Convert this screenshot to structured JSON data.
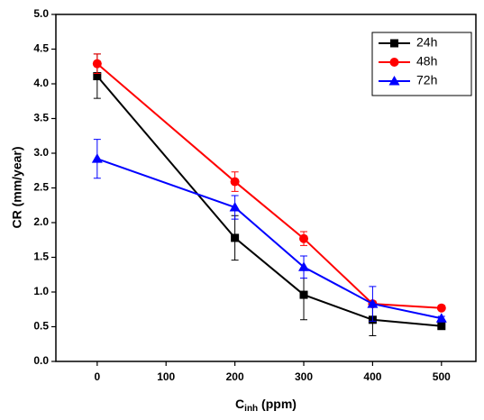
{
  "chart_data": {
    "type": "line",
    "xlabel": [
      "C",
      "inh",
      " (ppm)"
    ],
    "ylabel": "CR (mm/year)",
    "x": [
      0,
      200,
      300,
      400,
      500
    ],
    "series": [
      {
        "name": "24h",
        "color": "#000000",
        "marker": "square",
        "values": [
          4.11,
          1.78,
          0.96,
          0.6,
          0.51
        ],
        "errors": [
          0.32,
          0.32,
          0.36,
          0.23,
          0.03
        ]
      },
      {
        "name": "48h",
        "color": "#ff0000",
        "marker": "circle",
        "values": [
          4.29,
          2.59,
          1.77,
          0.83,
          0.77
        ],
        "errors": [
          0.14,
          0.14,
          0.1,
          0.04,
          0.02
        ]
      },
      {
        "name": "72h",
        "color": "#0000ff",
        "marker": "triangle",
        "values": [
          2.92,
          2.22,
          1.36,
          0.83,
          0.62
        ],
        "errors": [
          0.28,
          0.17,
          0.16,
          0.25,
          0.03
        ]
      }
    ],
    "xlim": [
      -60,
      550
    ],
    "xticks": [
      0,
      100,
      200,
      300,
      400,
      500
    ],
    "ylim": [
      0,
      5
    ],
    "yticks": [
      {
        "value": 0,
        "label": "0.0"
      },
      {
        "value": 0.5,
        "label": "0.5"
      },
      {
        "value": 1,
        "label": "1.0"
      },
      {
        "value": 1.5,
        "label": "1.5"
      },
      {
        "value": 2,
        "label": "2.0"
      },
      {
        "value": 2.5,
        "label": "2.5"
      },
      {
        "value": 3,
        "label": "3.0"
      },
      {
        "value": 3.5,
        "label": "3.5"
      },
      {
        "value": 4,
        "label": "4.0"
      },
      {
        "value": 4.5,
        "label": "4.5"
      },
      {
        "value": 5,
        "label": "5.0"
      }
    ],
    "legend": "top-right",
    "grid": false
  }
}
